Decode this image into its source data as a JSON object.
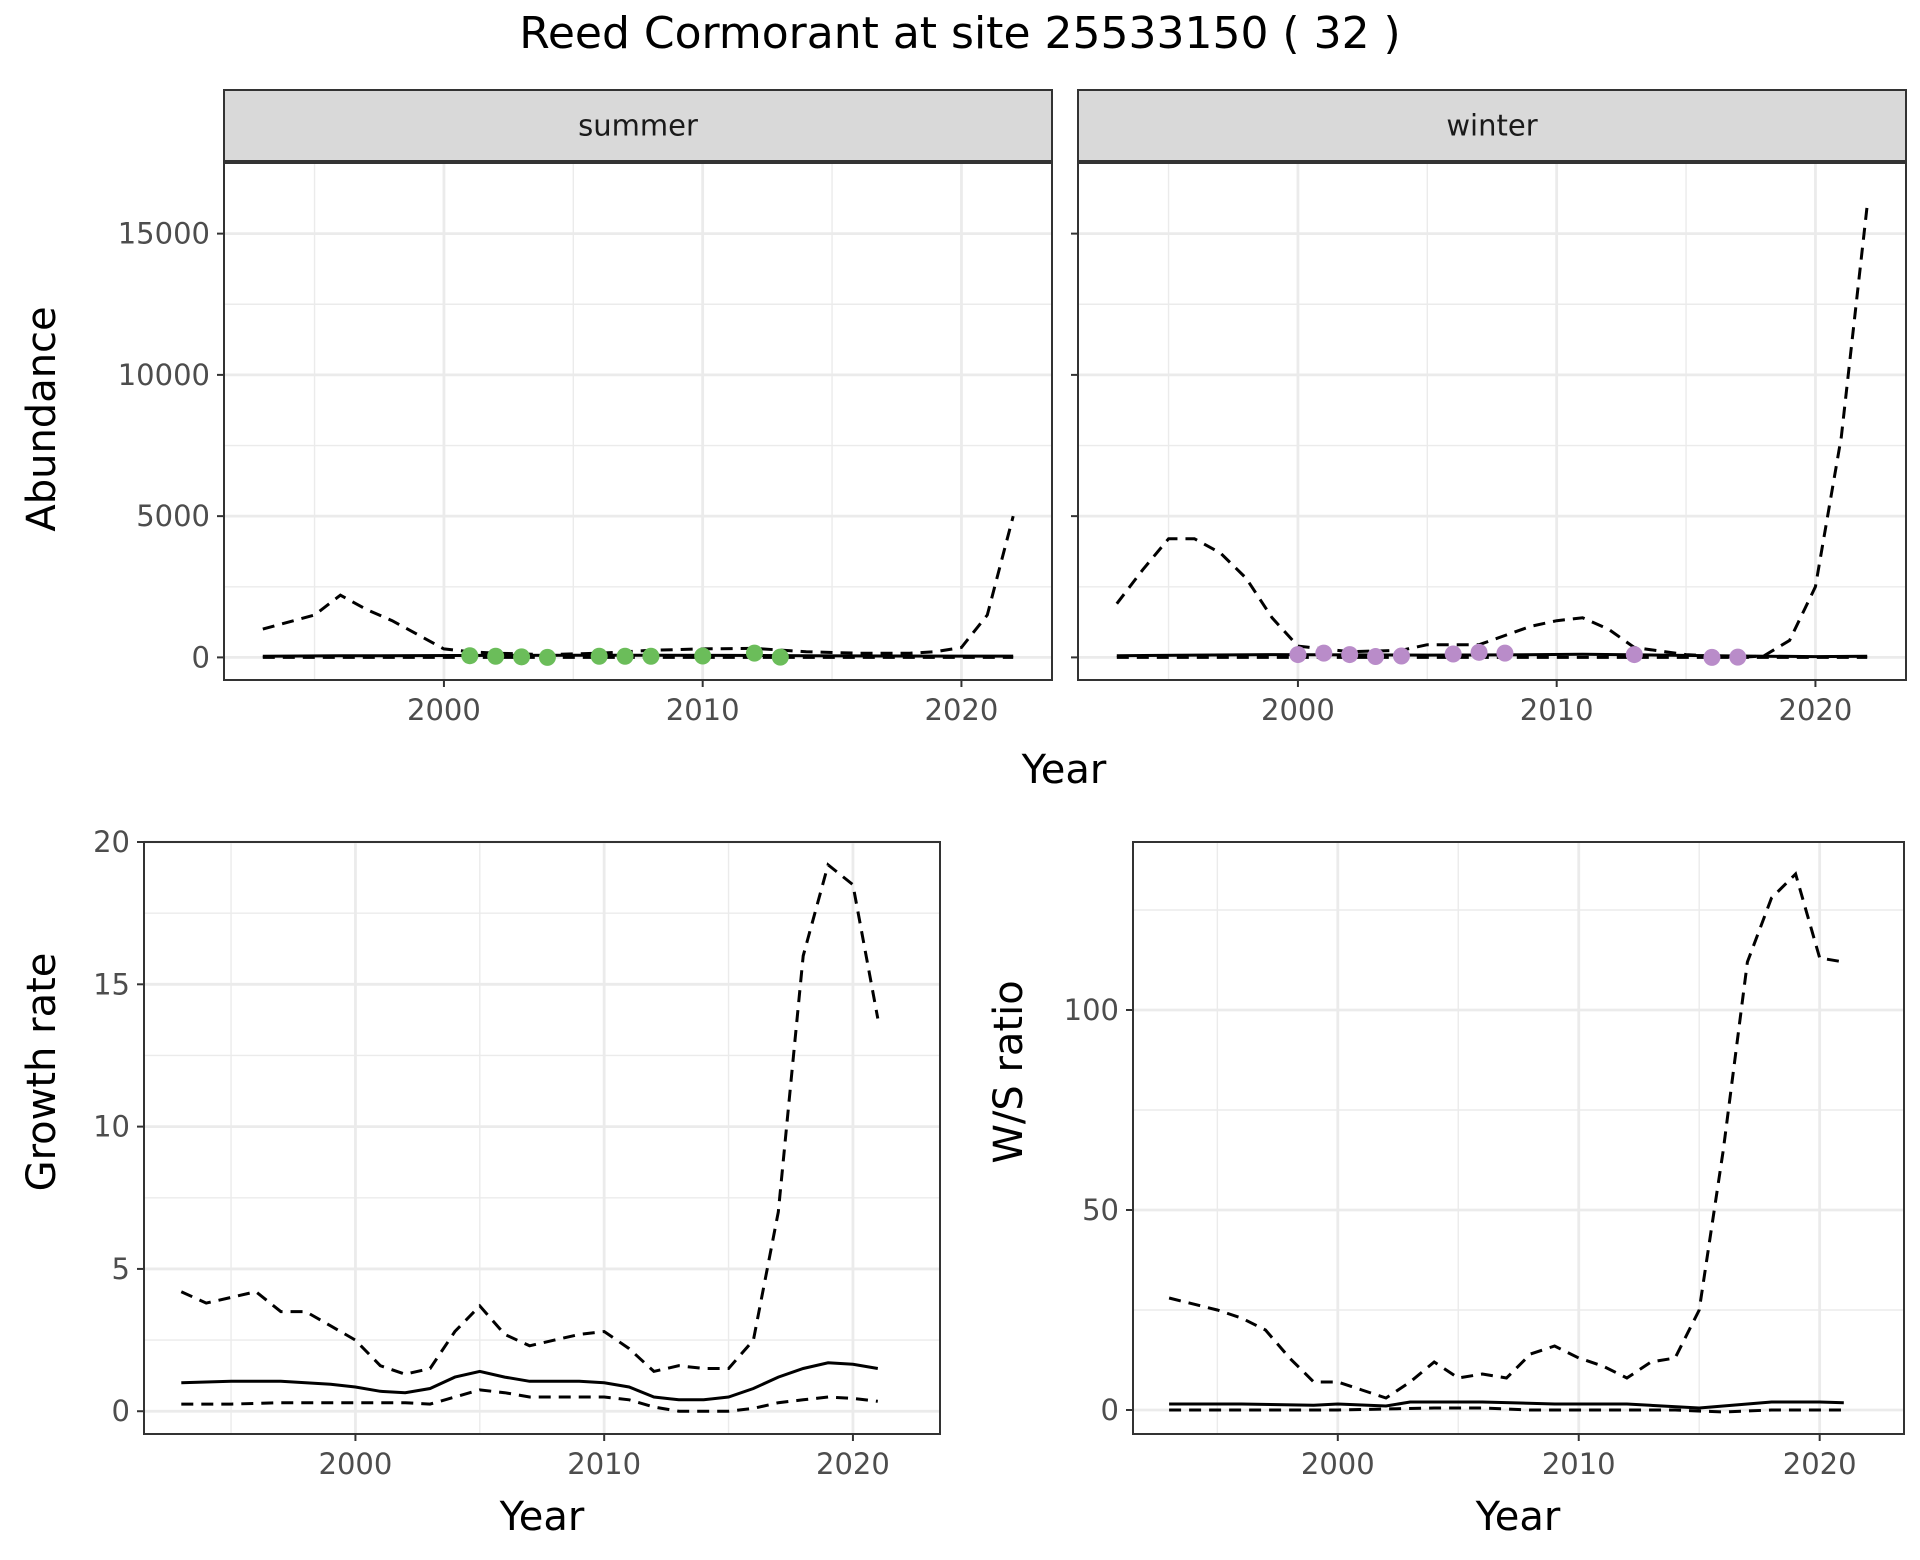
{
  "title": "Reed Cormorant at site 25533150 ( 32 )",
  "colors": {
    "summer_points": "#6bbd5a",
    "winter_points": "#b98cc9",
    "strip_fill": "#d9d9d9",
    "grid": "#ebebeb",
    "line": "#000000"
  },
  "abundance": {
    "ylabel": "Abundance",
    "xlabel": "Year",
    "xticks": [
      "2000",
      "2010",
      "2020"
    ],
    "yticks": [
      "0",
      "5000",
      "10000",
      "15000"
    ]
  },
  "growth": {
    "ylabel": "Growth rate",
    "xlabel": "Year",
    "xticks": [
      "2000",
      "2010",
      "2020"
    ],
    "yticks": [
      "0",
      "5",
      "10",
      "15",
      "20"
    ]
  },
  "ratio": {
    "ylabel": "W/S ratio",
    "xlabel": "Year",
    "xticks": [
      "2000",
      "2010",
      "2020"
    ],
    "yticks": [
      "0",
      "50",
      "100"
    ]
  },
  "chart_data": [
    {
      "type": "line",
      "facet": "summer",
      "xlim": [
        1991.5,
        2023.5
      ],
      "ylim": [
        -800,
        17500
      ],
      "grid": true,
      "mean": {
        "x": [
          1993,
          1996,
          1999,
          2002,
          2005,
          2008,
          2011,
          2014,
          2017,
          2020,
          2022
        ],
        "y": [
          40,
          55,
          65,
          70,
          75,
          75,
          70,
          60,
          50,
          45,
          45
        ]
      },
      "upper": {
        "x": [
          1993,
          1995,
          1996,
          1997,
          1998,
          1999,
          2000,
          2001,
          2002,
          2004,
          2006,
          2008,
          2010,
          2012,
          2014,
          2016,
          2018,
          2019,
          2020,
          2021,
          2022
        ],
        "y": [
          1000,
          1500,
          2200,
          1700,
          1300,
          800,
          300,
          200,
          150,
          100,
          150,
          250,
          300,
          320,
          200,
          150,
          150,
          200,
          350,
          1500,
          5000
        ]
      },
      "lower": {
        "x": [
          1993,
          2000,
          2010,
          2020,
          2022
        ],
        "y": [
          0,
          0,
          0,
          0,
          0
        ]
      },
      "points": {
        "x": [
          2001,
          2002,
          2003,
          2004,
          2006,
          2007,
          2008,
          2010,
          2012,
          2013
        ],
        "y": [
          60,
          40,
          20,
          0,
          40,
          40,
          40,
          50,
          150,
          10
        ]
      }
    },
    {
      "type": "line",
      "facet": "winter",
      "xlim": [
        1991.5,
        2023.5
      ],
      "ylim": [
        -800,
        17500
      ],
      "grid": true,
      "mean": {
        "x": [
          1993,
          1996,
          1999,
          2002,
          2005,
          2008,
          2011,
          2014,
          2017,
          2020,
          2022
        ],
        "y": [
          60,
          80,
          100,
          90,
          80,
          90,
          110,
          80,
          50,
          30,
          40
        ]
      },
      "upper": {
        "x": [
          1993,
          1994,
          1995,
          1996,
          1997,
          1998,
          1999,
          2000,
          2002,
          2004,
          2005,
          2007,
          2009,
          2010,
          2011,
          2012,
          2013,
          2015,
          2016,
          2017,
          2018,
          2019,
          2020,
          2021,
          2022
        ],
        "y": [
          1900,
          3100,
          4200,
          4200,
          3700,
          2800,
          1400,
          400,
          200,
          250,
          450,
          450,
          1100,
          1300,
          1400,
          1000,
          350,
          100,
          50,
          0,
          50,
          600,
          2500,
          7800,
          16000
        ]
      },
      "lower": {
        "x": [
          1993,
          2000,
          2010,
          2020,
          2022
        ],
        "y": [
          0,
          0,
          0,
          0,
          0
        ]
      },
      "points": {
        "x": [
          2000,
          2001,
          2002,
          2003,
          2004,
          2006,
          2007,
          2008,
          2013,
          2016,
          2017
        ],
        "y": [
          100,
          150,
          100,
          30,
          50,
          120,
          180,
          150,
          100,
          0,
          10
        ]
      }
    },
    {
      "type": "line",
      "xlim": [
        1991.5,
        2023.5
      ],
      "ylim": [
        -0.8,
        20
      ],
      "grid": true,
      "mean": {
        "x": [
          1993,
          1995,
          1997,
          1999,
          2000,
          2001,
          2002,
          2003,
          2004,
          2005,
          2006,
          2007,
          2008,
          2009,
          2010,
          2011,
          2012,
          2013,
          2014,
          2015,
          2016,
          2017,
          2018,
          2019,
          2020,
          2021
        ],
        "y": [
          1.0,
          1.05,
          1.05,
          0.95,
          0.85,
          0.7,
          0.65,
          0.8,
          1.2,
          1.4,
          1.2,
          1.05,
          1.05,
          1.05,
          1.0,
          0.85,
          0.5,
          0.4,
          0.4,
          0.5,
          0.8,
          1.2,
          1.5,
          1.7,
          1.65,
          1.5
        ]
      },
      "upper": {
        "x": [
          1993,
          1994,
          1995,
          1996,
          1997,
          1998,
          1999,
          2000,
          2001,
          2002,
          2003,
          2004,
          2005,
          2006,
          2007,
          2008,
          2009,
          2010,
          2011,
          2012,
          2013,
          2014,
          2015,
          2016,
          2017,
          2018,
          2019,
          2020,
          2021
        ],
        "y": [
          4.2,
          3.8,
          4.0,
          4.2,
          3.5,
          3.5,
          3.0,
          2.5,
          1.6,
          1.3,
          1.5,
          2.8,
          3.7,
          2.7,
          2.3,
          2.5,
          2.7,
          2.8,
          2.2,
          1.4,
          1.6,
          1.5,
          1.5,
          2.5,
          7.0,
          16.0,
          19.2,
          18.5,
          13.8
        ]
      },
      "lower": {
        "x": [
          1993,
          1995,
          1997,
          1999,
          2001,
          2002,
          2003,
          2004,
          2005,
          2006,
          2007,
          2008,
          2009,
          2010,
          2011,
          2012,
          2013,
          2014,
          2015,
          2016,
          2017,
          2018,
          2019,
          2020,
          2021
        ],
        "y": [
          0.25,
          0.25,
          0.3,
          0.3,
          0.3,
          0.3,
          0.25,
          0.5,
          0.75,
          0.65,
          0.5,
          0.5,
          0.5,
          0.5,
          0.4,
          0.15,
          0.0,
          0.0,
          0.0,
          0.1,
          0.3,
          0.4,
          0.5,
          0.45,
          0.35
        ]
      }
    },
    {
      "type": "line",
      "xlim": [
        1991.5,
        2023.5
      ],
      "ylim": [
        -6,
        142
      ],
      "grid": true,
      "mean": {
        "x": [
          1993,
          1996,
          1999,
          2000,
          2002,
          2003,
          2006,
          2009,
          2012,
          2015,
          2016,
          2018,
          2020,
          2021
        ],
        "y": [
          1.5,
          1.5,
          1.2,
          1.5,
          1.0,
          2.0,
          2.0,
          1.5,
          1.5,
          0.5,
          1.0,
          2.0,
          2.0,
          1.8
        ]
      },
      "upper": {
        "x": [
          1993,
          1995,
          1996,
          1997,
          1998,
          1999,
          2000,
          2001,
          2002,
          2003,
          2004,
          2005,
          2006,
          2007,
          2008,
          2009,
          2010,
          2011,
          2012,
          2013,
          2014,
          2015,
          2016,
          2017,
          2018,
          2019,
          2020,
          2021
        ],
        "y": [
          28,
          25,
          23,
          20,
          13,
          7,
          7,
          5,
          3,
          7,
          12,
          8,
          9,
          8,
          14,
          16,
          13,
          11,
          8,
          12,
          13,
          25,
          65,
          112,
          128,
          134,
          113,
          112
        ]
      },
      "lower": {
        "x": [
          1993,
          1996,
          2000,
          2004,
          2006,
          2008,
          2010,
          2012,
          2014,
          2016,
          2018,
          2020,
          2021
        ],
        "y": [
          0,
          0,
          0,
          0.5,
          0.5,
          0,
          0,
          0,
          0,
          -0.5,
          0,
          0,
          0
        ]
      }
    }
  ]
}
